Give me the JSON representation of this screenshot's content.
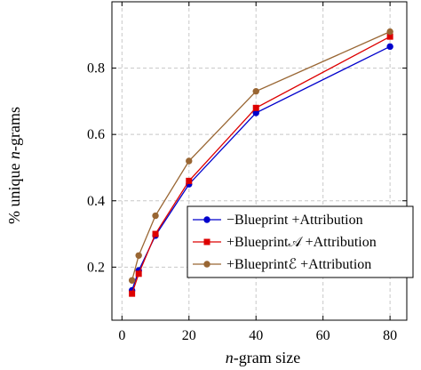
{
  "chart_data": {
    "type": "line",
    "xlabel": "n-gram size",
    "ylabel": "% unique n-grams",
    "xlim": [
      -3,
      85
    ],
    "ylim": [
      0.04,
      1.0
    ],
    "xticks": [
      0,
      20,
      40,
      60,
      80
    ],
    "yticks": [
      0.2,
      0.4,
      0.6,
      0.8
    ],
    "grid": true,
    "legend_position": "bottom-right",
    "series": [
      {
        "name": "−Blueprint +Attribution",
        "color": "#0000cc",
        "marker": "circle",
        "x": [
          3,
          5,
          10,
          20,
          40,
          80
        ],
        "y": [
          0.13,
          0.19,
          0.295,
          0.45,
          0.665,
          0.865
        ]
      },
      {
        "name": "+Blueprint𝒜 +Attribution",
        "color": "#dd0000",
        "marker": "square",
        "x": [
          3,
          5,
          10,
          20,
          40,
          80
        ],
        "y": [
          0.12,
          0.18,
          0.3,
          0.46,
          0.68,
          0.895
        ]
      },
      {
        "name": "+Blueprintℰ +Attribution",
        "color": "#996633",
        "marker": "circle",
        "x": [
          3,
          5,
          10,
          20,
          40,
          80
        ],
        "y": [
          0.16,
          0.235,
          0.355,
          0.52,
          0.73,
          0.91
        ]
      }
    ]
  }
}
